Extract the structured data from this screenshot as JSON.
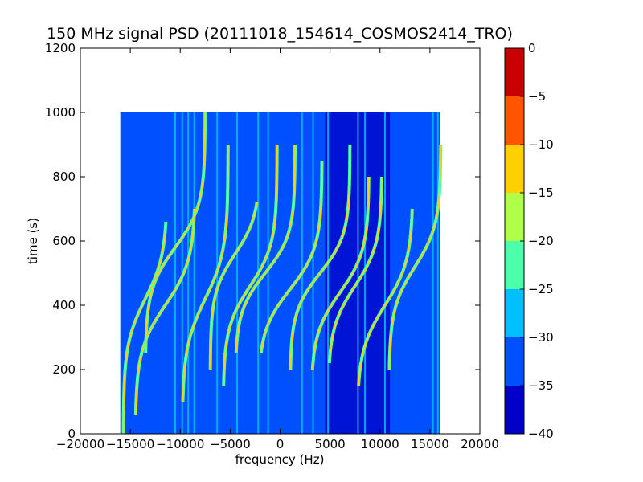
{
  "chart_data": {
    "type": "heatmap",
    "title": "150 MHz signal PSD (20111018_154614_COSMOS2414_TRO)",
    "xlabel": "frequency (Hz)",
    "ylabel": "time (s)",
    "xlim": [
      -20000,
      20000
    ],
    "ylim": [
      0,
      1200
    ],
    "x_ticks": [
      -20000,
      -15000,
      -10000,
      -5000,
      0,
      5000,
      10000,
      15000,
      20000
    ],
    "x_tick_labels": [
      "−20000",
      "−15000",
      "−10000",
      "−5000",
      "0",
      "5000",
      "10000",
      "15000",
      "20000"
    ],
    "y_ticks": [
      0,
      200,
      400,
      600,
      800,
      1000,
      1200
    ],
    "y_tick_labels": [
      "0",
      "200",
      "400",
      "600",
      "800",
      "1000",
      "1200"
    ],
    "data_extent": {
      "freq": [
        -16000,
        16000
      ],
      "time": [
        0,
        1000
      ]
    },
    "colorbar": {
      "levels": [
        -40,
        -35,
        -30,
        -25,
        -20,
        -15,
        -10,
        -5,
        0
      ],
      "level_labels": [
        "−40",
        "−35",
        "−30",
        "−25",
        "−20",
        "−15",
        "−10",
        "−5",
        "0"
      ],
      "colors": [
        "#0000c8",
        "#0050ff",
        "#00c0ff",
        "#4cffaa",
        "#b0ff48",
        "#ffd000",
        "#ff5500",
        "#c80000"
      ]
    },
    "background_level": -35,
    "dark_band_freq": [
      4500,
      11000
    ],
    "vertical_lines_freq": [
      -10500,
      -9800,
      -9200,
      -8600,
      -6300,
      -4300,
      -2200,
      -1200,
      2200,
      3300,
      4800,
      7800,
      8500,
      10500,
      15300,
      15800
    ],
    "doppler_tracks": [
      {
        "center_freq": -13500,
        "center_time": 420,
        "amplitude": 2200,
        "time_scale": 140,
        "time_range": [
          0,
          660
        ]
      },
      {
        "center_freq": -11500,
        "center_time": 400,
        "amplitude": 3000,
        "time_scale": 140,
        "time_range": [
          60,
          700
        ]
      },
      {
        "center_freq": -10500,
        "center_time": 580,
        "amplitude": 3000,
        "time_scale": 130,
        "time_range": [
          250,
          1000
        ]
      },
      {
        "center_freq": -7500,
        "center_time": 420,
        "amplitude": 2300,
        "time_scale": 150,
        "time_range": [
          100,
          900
        ]
      },
      {
        "center_freq": -4500,
        "center_time": 560,
        "amplitude": 2500,
        "time_scale": 120,
        "time_range": [
          200,
          720
        ]
      },
      {
        "center_freq": -3000,
        "center_time": 460,
        "amplitude": 2700,
        "time_scale": 130,
        "time_range": [
          150,
          900
        ]
      },
      {
        "center_freq": -1500,
        "center_time": 500,
        "amplitude": 3000,
        "time_scale": 120,
        "time_range": [
          250,
          900
        ]
      },
      {
        "center_freq": 1000,
        "center_time": 450,
        "amplitude": 3200,
        "time_scale": 130,
        "time_range": [
          250,
          850
        ]
      },
      {
        "center_freq": 4000,
        "center_time": 500,
        "amplitude": 3000,
        "time_scale": 120,
        "time_range": [
          200,
          900
        ]
      },
      {
        "center_freq": 6000,
        "center_time": 440,
        "amplitude": 2900,
        "time_scale": 130,
        "time_range": [
          200,
          800
        ]
      },
      {
        "center_freq": 7500,
        "center_time": 460,
        "amplitude": 2700,
        "time_scale": 130,
        "time_range": [
          220,
          800
        ]
      },
      {
        "center_freq": 10500,
        "center_time": 400,
        "amplitude": 2800,
        "time_scale": 140,
        "time_range": [
          150,
          700
        ]
      },
      {
        "center_freq": 13500,
        "center_time": 520,
        "amplitude": 2600,
        "time_scale": 130,
        "time_range": [
          200,
          900
        ]
      }
    ]
  }
}
